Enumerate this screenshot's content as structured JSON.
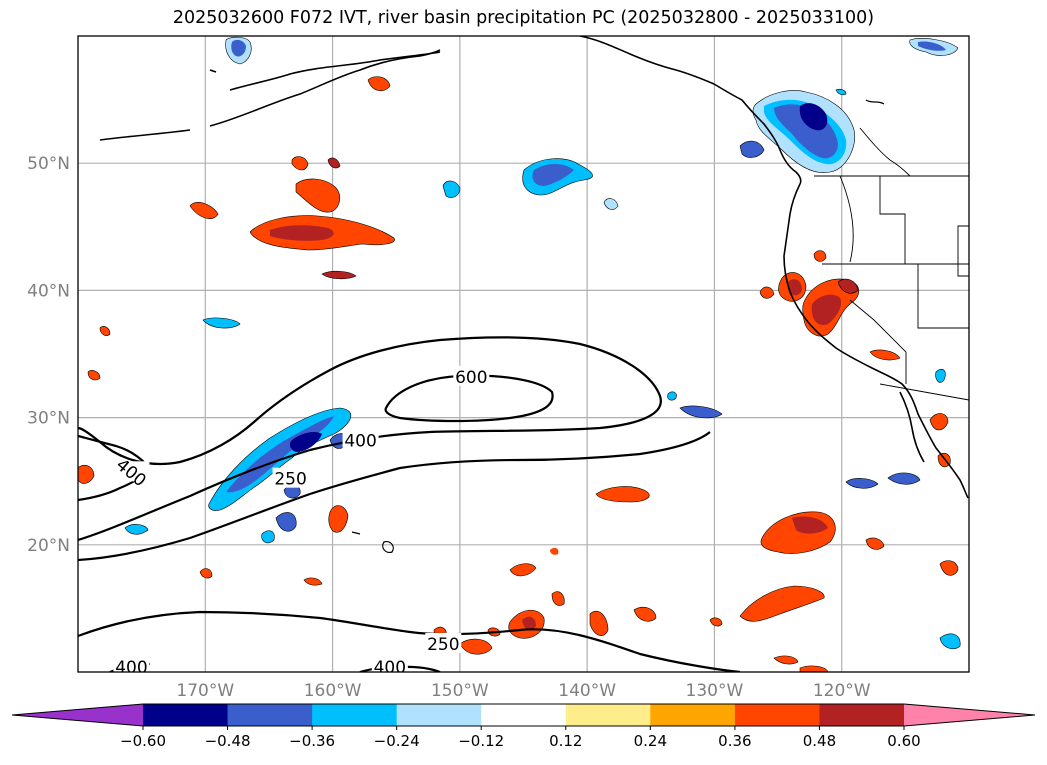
{
  "title": "2025032600 F072 IVT, river basin precipitation PC (2025032800 - 2025033100)",
  "chart_data": {
    "type": "contour-map",
    "title": "2025032600 F072 IVT, river basin precipitation PC (2025032800 - 2025033100)",
    "projection": "PlateCarree",
    "lon_range": [
      -180,
      -110
    ],
    "lat_range": [
      10,
      60
    ],
    "grid": true,
    "x_ticks": [
      {
        "lon": -170,
        "label": "170°W"
      },
      {
        "lon": -160,
        "label": "160°W"
      },
      {
        "lon": -150,
        "label": "150°W"
      },
      {
        "lon": -140,
        "label": "140°W"
      },
      {
        "lon": -130,
        "label": "130°W"
      },
      {
        "lon": -120,
        "label": "120°W"
      }
    ],
    "y_ticks": [
      {
        "lat": 20,
        "label": "20°N"
      },
      {
        "lat": 30,
        "label": "30°N"
      },
      {
        "lat": 40,
        "label": "40°N"
      },
      {
        "lat": 50,
        "label": "50°N"
      }
    ],
    "ivt_contour_levels": [
      250,
      400,
      600
    ],
    "ivt_contour_labels": [
      {
        "text": "600",
        "lon": -149.1,
        "lat": 33.2
      },
      {
        "text": "400",
        "lon": -157.8,
        "lat": 28.2
      },
      {
        "text": "400",
        "lon": -175.8,
        "lat": 25.7
      },
      {
        "text": "250",
        "lon": -163.3,
        "lat": 25.2
      },
      {
        "text": "250",
        "lon": -151.3,
        "lat": 12.2
      },
      {
        "text": "400",
        "lon": -175.8,
        "lat": 10.4
      },
      {
        "text": "400",
        "lon": -155.5,
        "lat": 10.4
      }
    ],
    "colorbar": {
      "levels": [
        -0.6,
        -0.48,
        -0.36,
        -0.24,
        -0.12,
        0.12,
        0.24,
        0.36,
        0.48,
        0.6
      ],
      "tick_labels": [
        "−0.60",
        "−0.48",
        "−0.36",
        "−0.24",
        "−0.12",
        "0.12",
        "0.24",
        "0.36",
        "0.48",
        "0.60"
      ],
      "colors": [
        "#9932cc",
        "#00008b",
        "#3a5fcd",
        "#00bfff",
        "#b0e2ff",
        "#ffffff",
        "#ffec8b",
        "#ffa500",
        "#ff4500",
        "#b22222",
        "#ff82ab"
      ],
      "extend": "both"
    }
  }
}
